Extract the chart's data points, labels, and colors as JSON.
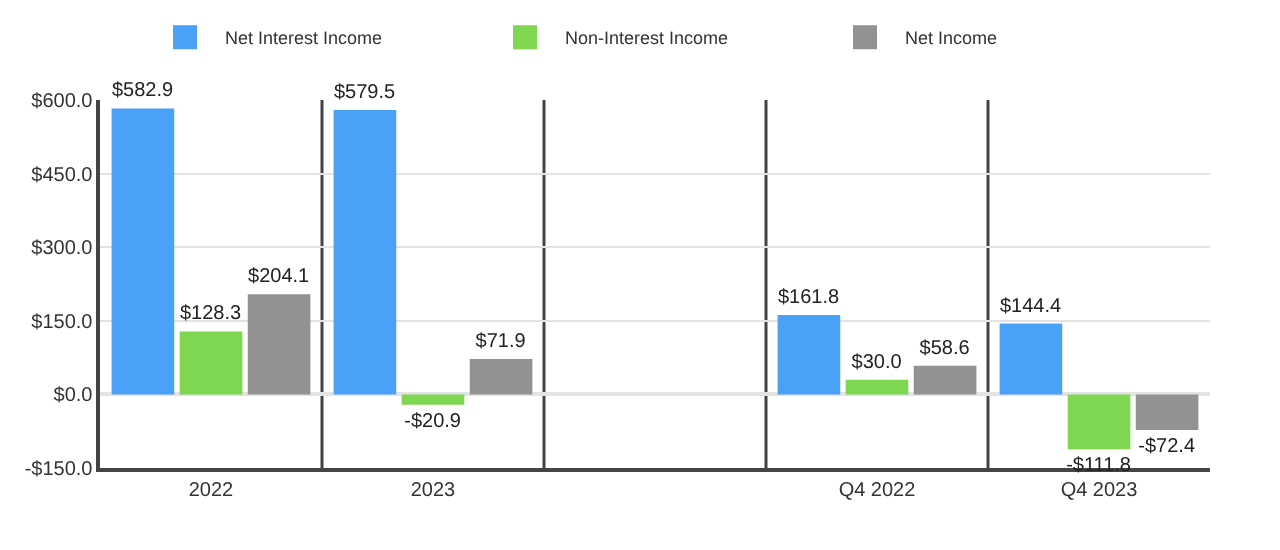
{
  "chart_data": {
    "type": "bar",
    "categories": [
      "2022",
      "2023",
      null,
      "Q4 2022",
      "Q4 2023"
    ],
    "series": [
      {
        "name": "Net Interest Income",
        "color": "#4aa1f7",
        "values": [
          582.9,
          579.5,
          null,
          161.8,
          144.4
        ],
        "value_labels": [
          "$582.9",
          "$579.5",
          null,
          "$161.8",
          "$144.4"
        ]
      },
      {
        "name": "Non-Interest Income",
        "color": "#7fd650",
        "values": [
          128.3,
          -20.9,
          null,
          30.0,
          -111.8
        ],
        "value_labels": [
          "$128.3",
          "-$20.9",
          null,
          "$30.0",
          "-$111.8"
        ]
      },
      {
        "name": "Net Income",
        "color": "#929292",
        "values": [
          204.1,
          71.9,
          null,
          58.6,
          -72.4
        ],
        "value_labels": [
          "$204.1",
          "$71.9",
          null,
          "$58.6",
          "-$72.4"
        ]
      }
    ],
    "ylim": [
      -150,
      600
    ],
    "yticks": [
      {
        "value": -150,
        "label": "-$150.0"
      },
      {
        "value": 0,
        "label": "$0.0"
      },
      {
        "value": 150,
        "label": "$150.0"
      },
      {
        "value": 300,
        "label": "$300.0"
      },
      {
        "value": 450,
        "label": "$450.0"
      },
      {
        "value": 600,
        "label": "$600.0"
      }
    ],
    "grid": true,
    "legend": "top"
  }
}
